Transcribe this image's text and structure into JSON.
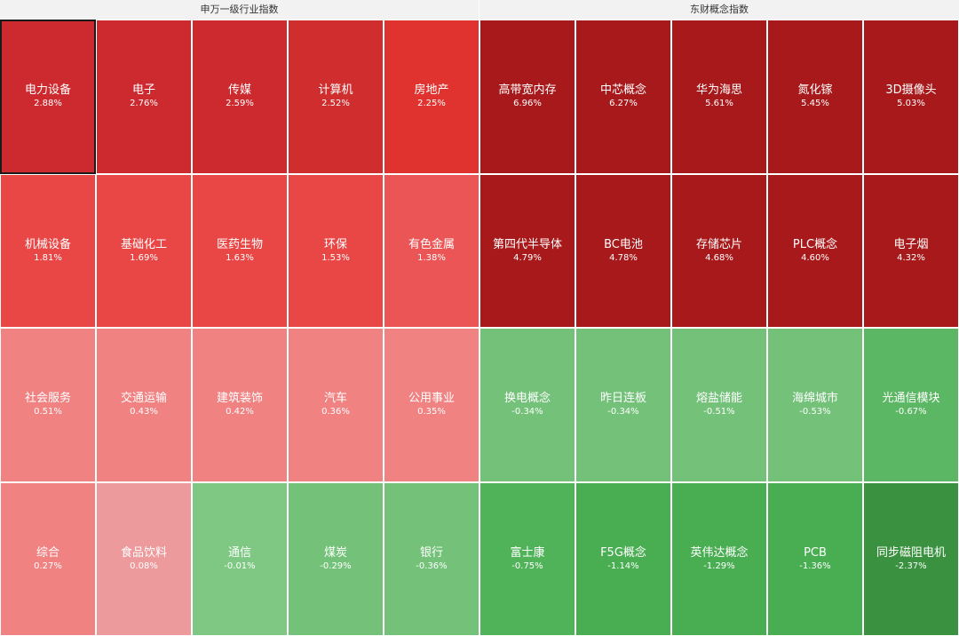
{
  "panels": [
    {
      "id": "left",
      "title": "申万一级行业指数",
      "cols": 5,
      "rows": 4,
      "tiles": [
        {
          "name": "电力设备",
          "pct": "2.88%",
          "color": "#cd2a2f",
          "selected": true
        },
        {
          "name": "电子",
          "pct": "2.76%",
          "color": "#cd2a2f"
        },
        {
          "name": "传媒",
          "pct": "2.59%",
          "color": "#cd2a2f"
        },
        {
          "name": "计算机",
          "pct": "2.52%",
          "color": "#d02d2e"
        },
        {
          "name": "房地产",
          "pct": "2.25%",
          "color": "#e03330"
        },
        {
          "name": "机械设备",
          "pct": "1.81%",
          "color": "#e84746"
        },
        {
          "name": "基础化工",
          "pct": "1.69%",
          "color": "#e84746"
        },
        {
          "name": "医药生物",
          "pct": "1.63%",
          "color": "#e84746"
        },
        {
          "name": "环保",
          "pct": "1.53%",
          "color": "#e84746"
        },
        {
          "name": "有色金属",
          "pct": "1.38%",
          "color": "#ec5555"
        },
        {
          "name": "社会服务",
          "pct": "0.51%",
          "color": "#f08282"
        },
        {
          "name": "交通运输",
          "pct": "0.43%",
          "color": "#f08282"
        },
        {
          "name": "建筑装饰",
          "pct": "0.42%",
          "color": "#f08282"
        },
        {
          "name": "汽车",
          "pct": "0.36%",
          "color": "#f08282"
        },
        {
          "name": "公用事业",
          "pct": "0.35%",
          "color": "#f08282"
        },
        {
          "name": "综合",
          "pct": "0.27%",
          "color": "#f08282"
        },
        {
          "name": "食品饮料",
          "pct": "0.08%",
          "color": "#ec9a9c"
        },
        {
          "name": "通信",
          "pct": "-0.01%",
          "color": "#7ec884"
        },
        {
          "name": "煤炭",
          "pct": "-0.29%",
          "color": "#74c27a"
        },
        {
          "name": "银行",
          "pct": "-0.36%",
          "color": "#74c27a"
        }
      ]
    },
    {
      "id": "right",
      "title": "东财概念指数",
      "cols": 5,
      "rows": 4,
      "tiles": [
        {
          "name": "高带宽内存",
          "pct": "6.96%",
          "color": "#a8191b"
        },
        {
          "name": "中芯概念",
          "pct": "6.27%",
          "color": "#a8191b"
        },
        {
          "name": "华为海思",
          "pct": "5.61%",
          "color": "#a8191b"
        },
        {
          "name": "氮化镓",
          "pct": "5.45%",
          "color": "#a8191b"
        },
        {
          "name": "3D摄像头",
          "pct": "5.03%",
          "color": "#a8191b"
        },
        {
          "name": "第四代半导体",
          "pct": "4.79%",
          "color": "#a8191b"
        },
        {
          "name": "BC电池",
          "pct": "4.78%",
          "color": "#a8191b"
        },
        {
          "name": "存储芯片",
          "pct": "4.68%",
          "color": "#a8191b"
        },
        {
          "name": "PLC概念",
          "pct": "4.60%",
          "color": "#a8191b"
        },
        {
          "name": "电子烟",
          "pct": "4.32%",
          "color": "#a8191b"
        },
        {
          "name": "换电概念",
          "pct": "-0.34%",
          "color": "#74c27a"
        },
        {
          "name": "昨日连板",
          "pct": "-0.34%",
          "color": "#74c27a"
        },
        {
          "name": "熔盐储能",
          "pct": "-0.51%",
          "color": "#74c27a"
        },
        {
          "name": "海绵城市",
          "pct": "-0.53%",
          "color": "#74c27a"
        },
        {
          "name": "光通信模块",
          "pct": "-0.67%",
          "color": "#5cb764"
        },
        {
          "name": "富士康",
          "pct": "-0.75%",
          "color": "#50b259"
        },
        {
          "name": "F5G概念",
          "pct": "-1.14%",
          "color": "#49ad52"
        },
        {
          "name": "英伟达概念",
          "pct": "-1.29%",
          "color": "#49ad52"
        },
        {
          "name": "PCB",
          "pct": "-1.36%",
          "color": "#49ad52"
        },
        {
          "name": "同步磁阻电机",
          "pct": "-2.37%",
          "color": "#3a913f"
        }
      ]
    }
  ]
}
